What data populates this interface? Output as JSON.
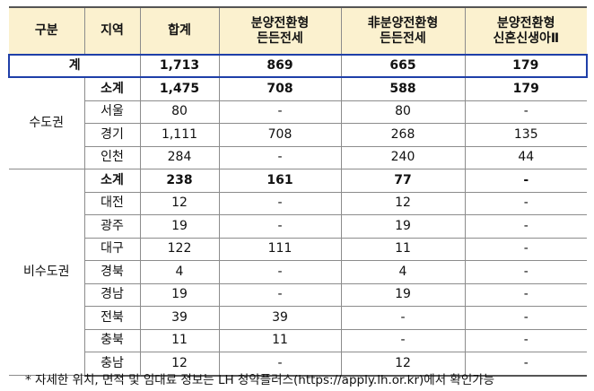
{
  "header": {
    "col1": "구분",
    "col2": "지역",
    "col3": "합계",
    "col4_line1": "분양전환형",
    "col4_line2": "든든전세",
    "col5_line1": "非분양전환형",
    "col5_line2": "든든전세",
    "col6_line1": "분양전환형",
    "col6_line2": "신혼신생아Ⅱ"
  },
  "total": {
    "label": "계",
    "sum": "1,713",
    "a": "869",
    "b": "665",
    "c": "179"
  },
  "capital": {
    "label": "수도권",
    "rows": [
      {
        "region": "소계",
        "sum": "1,475",
        "a": "708",
        "b": "588",
        "c": "179"
      },
      {
        "region": "서울",
        "sum": "80",
        "a": "-",
        "b": "80",
        "c": "-"
      },
      {
        "region": "경기",
        "sum": "1,111",
        "a": "708",
        "b": "268",
        "c": "135"
      },
      {
        "region": "인천",
        "sum": "284",
        "a": "-",
        "b": "240",
        "c": "44"
      }
    ]
  },
  "noncapital": {
    "label": "비수도권",
    "rows": [
      {
        "region": "소계",
        "sum": "238",
        "a": "161",
        "b": "77",
        "c": "-"
      },
      {
        "region": "대전",
        "sum": "12",
        "a": "-",
        "b": "12",
        "c": "-"
      },
      {
        "region": "광주",
        "sum": "19",
        "a": "-",
        "b": "19",
        "c": "-"
      },
      {
        "region": "대구",
        "sum": "122",
        "a": "111",
        "b": "11",
        "c": "-"
      },
      {
        "region": "경북",
        "sum": "4",
        "a": "-",
        "b": "4",
        "c": "-"
      },
      {
        "region": "경남",
        "sum": "19",
        "a": "-",
        "b": "19",
        "c": "-"
      },
      {
        "region": "전북",
        "sum": "39",
        "a": "39",
        "b": "-",
        "c": "-"
      },
      {
        "region": "충북",
        "sum": "11",
        "a": "11",
        "b": "-",
        "c": "-"
      },
      {
        "region": "충남",
        "sum": "12",
        "a": "-",
        "b": "12",
        "c": "-"
      }
    ]
  },
  "footnote": "* 자세한 위치, 면적 및 임대료 정보는 LH 청약플러스(https://apply.lh.or.kr)에서 확인가능"
}
